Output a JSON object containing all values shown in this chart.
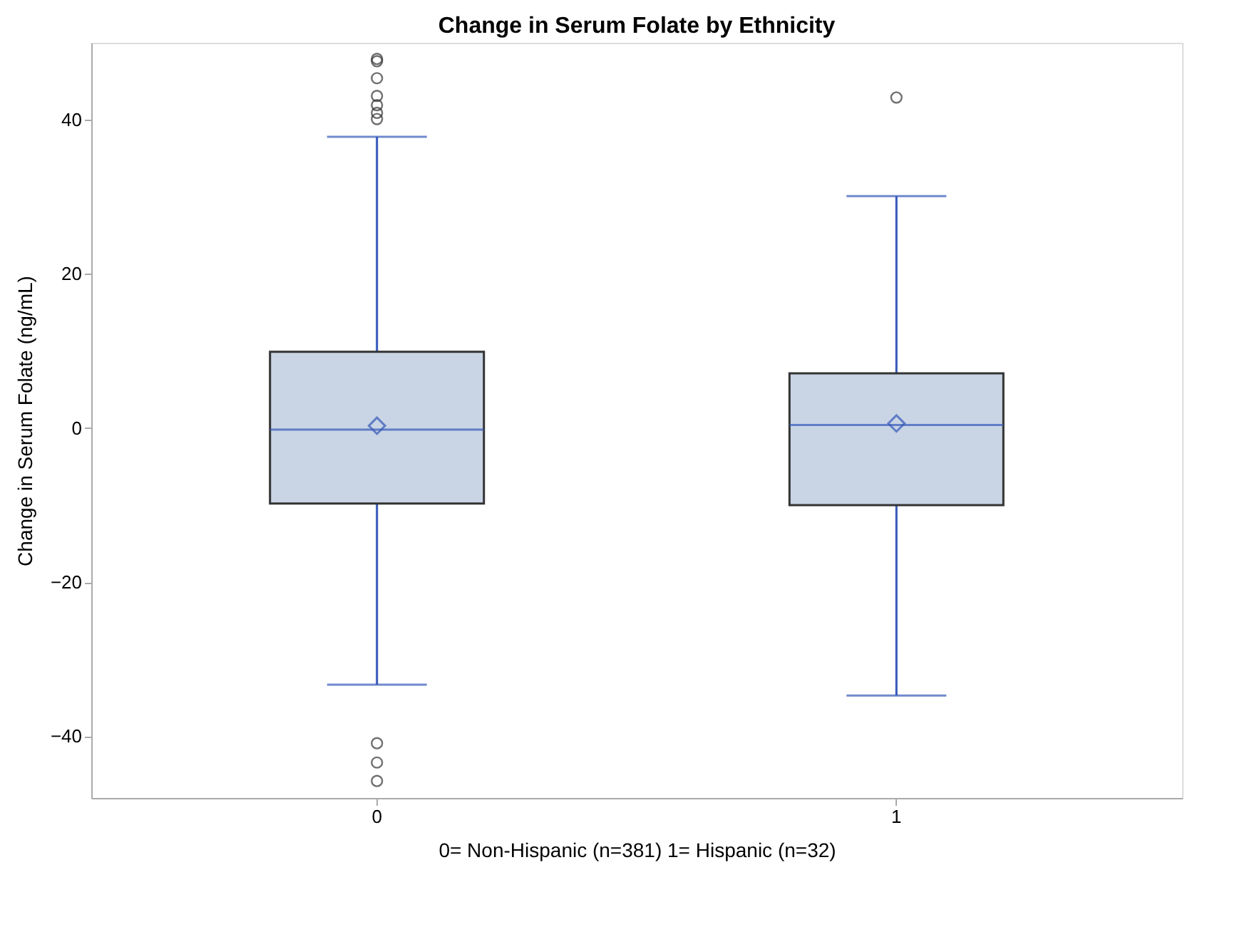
{
  "chart_data": {
    "type": "box",
    "title": "Change in Serum Folate by Ethnicity",
    "xlabel": "0= Non-Hispanic (n=381)  1= Hispanic (n=32)",
    "ylabel": "Change in Serum Folate (ng/mL)",
    "categories": [
      "0",
      "1"
    ],
    "series": [
      {
        "color": "#c9d4e5",
        "boxes": [
          {
            "low": -33.3,
            "q1": -9.8,
            "median": -0.2,
            "q3": 9.9,
            "high": 37.8,
            "mean": 0.3,
            "outliers": [
              47.9,
              47.6,
              45.4,
              43.1,
              41.9,
              40.9,
              40.1,
              -40.9,
              -43.4,
              -45.8
            ]
          },
          {
            "low": -34.7,
            "q1": -10.0,
            "median": 0.4,
            "q3": 7.1,
            "high": 30.1,
            "mean": 0.6,
            "outliers": [
              42.9
            ]
          }
        ]
      }
    ],
    "ylim": [
      -48,
      50
    ],
    "yticks": [
      -40,
      -20,
      0,
      20,
      40
    ],
    "grid": false
  }
}
